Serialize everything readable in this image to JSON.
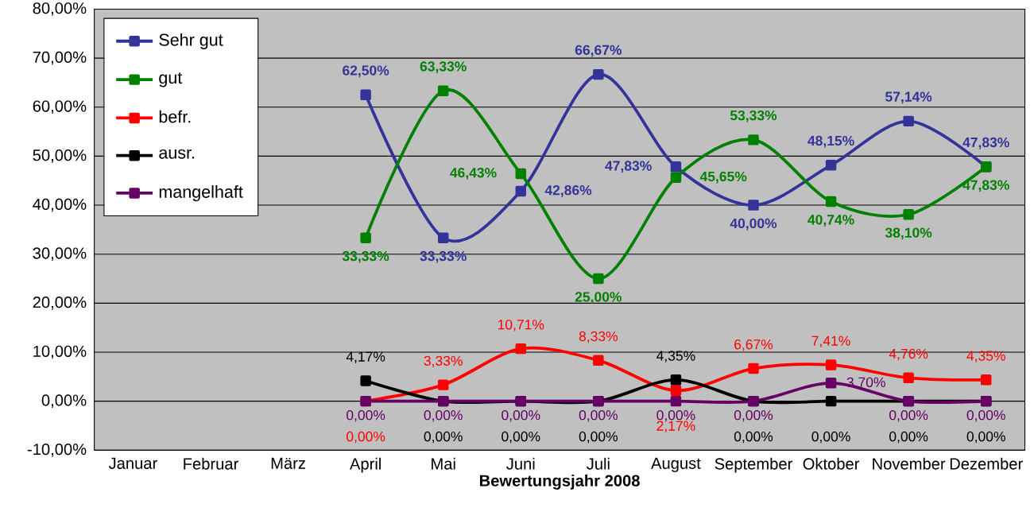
{
  "chart_data": {
    "type": "line",
    "xlabel": "Bewertungsjahr 2008",
    "categories": [
      "Januar",
      "Februar",
      "März",
      "April",
      "Mai",
      "Juni",
      "Juli",
      "August",
      "September",
      "Oktober",
      "November",
      "Dezember"
    ],
    "series": [
      {
        "name": "Sehr gut",
        "color": "#333399",
        "values": [
          null,
          null,
          null,
          62.5,
          33.33,
          42.86,
          66.67,
          47.83,
          40.0,
          48.15,
          57.14,
          47.83
        ],
        "value_labels": [
          null,
          null,
          null,
          "62,50%",
          "33,33%",
          "42,86%",
          "66,67%",
          "47,83%",
          "40,00%",
          "48,15%",
          "57,14%",
          "47,83%"
        ]
      },
      {
        "name": "gut",
        "color": "#008000",
        "values": [
          null,
          null,
          null,
          33.33,
          63.33,
          46.43,
          25.0,
          45.65,
          53.33,
          40.74,
          38.1,
          47.83
        ],
        "value_labels": [
          null,
          null,
          null,
          "33,33%",
          "63,33%",
          "46,43%",
          "25,00%",
          "45,65%",
          "53,33%",
          "40,74%",
          "38,10%",
          "47,83%"
        ]
      },
      {
        "name": "befr.",
        "color": "#ff0000",
        "values": [
          null,
          null,
          null,
          0.0,
          3.33,
          10.71,
          8.33,
          2.17,
          6.67,
          7.41,
          4.76,
          4.35
        ],
        "value_labels": [
          null,
          null,
          null,
          "0,00%",
          "3,33%",
          "10,71%",
          "8,33%",
          "2,17%",
          "6,67%",
          "7,41%",
          "4,76%",
          "4,35%"
        ]
      },
      {
        "name": "ausr.",
        "color": "#000000",
        "values": [
          null,
          null,
          null,
          4.17,
          0.0,
          0.0,
          0.0,
          4.35,
          0.0,
          0.0,
          0.0,
          0.0
        ],
        "value_labels": [
          null,
          null,
          null,
          "4,17%",
          "0,00%",
          "0,00%",
          "0,00%",
          "4,35%",
          "0,00%",
          "0,00%",
          "0,00%",
          "0,00%"
        ]
      },
      {
        "name": "mangelhaft",
        "color": "#660066",
        "values": [
          null,
          null,
          null,
          0.0,
          0.0,
          0.0,
          0.0,
          0.0,
          0.0,
          3.7,
          0.0,
          0.0
        ],
        "value_labels": [
          null,
          null,
          null,
          "0,00%",
          "0,00%",
          "0,00%",
          "0,00%",
          "0,00%",
          "0,00%",
          "3,70%",
          "0,00%",
          "0,00%"
        ]
      }
    ],
    "ylim": [
      -10,
      80
    ],
    "yticks": [
      {
        "value": -10,
        "label": "-10,00%"
      },
      {
        "value": 0,
        "label": "0,00%"
      },
      {
        "value": 10,
        "label": "10,00%"
      },
      {
        "value": 20,
        "label": "20,00%"
      },
      {
        "value": 30,
        "label": "30,00%"
      },
      {
        "value": 40,
        "label": "40,00%"
      },
      {
        "value": 50,
        "label": "50,00%"
      },
      {
        "value": 60,
        "label": "60,00%"
      },
      {
        "value": 70,
        "label": "70,00%"
      },
      {
        "value": 80,
        "label": "80,00%"
      }
    ],
    "grid": "y",
    "legend": "top left",
    "marker": "square",
    "line_style": "solid"
  }
}
